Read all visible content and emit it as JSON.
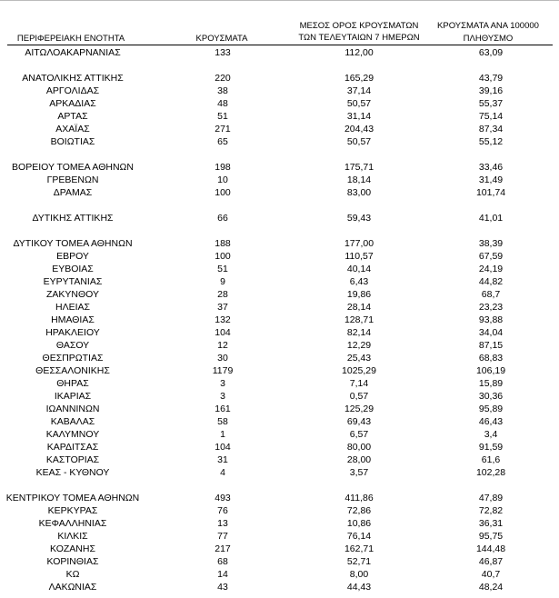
{
  "table": {
    "header": {
      "region": "ΠΕΡΙΦΕΡΕΙΑΚΗ ΕΝΟΤΗΤΑ",
      "cases": "ΚΡΟΥΣΜΑΤΑ",
      "avg7": [
        "ΜΕΣΟΣ ΟΡΟΣ ΚΡΟΥΣΜΑΤΩΝ",
        "ΤΩΝ ΤΕΛΕΥΤΑΙΩΝ 7 ΗΜΕΡΩΝ"
      ],
      "per100k": [
        "ΚΡΟΥΣΜΑΤΑ ΑΝΑ 100000",
        "ΠΛΗΘΥΣΜΟ"
      ]
    },
    "groups": [
      [
        [
          "ΑΙΤΩΛΟΑΚΑΡΝΑΝΙΑΣ",
          "133",
          "112,00",
          "63,09"
        ]
      ],
      [
        [
          "ΑΝΑΤΟΛΙΚΗΣ ΑΤΤΙΚΗΣ",
          "220",
          "165,29",
          "43,79"
        ],
        [
          "ΑΡΓΟΛΙΔΑΣ",
          "38",
          "37,14",
          "39,16"
        ],
        [
          "ΑΡΚΑΔΙΑΣ",
          "48",
          "50,57",
          "55,37"
        ],
        [
          "ΑΡΤΑΣ",
          "51",
          "31,14",
          "75,14"
        ],
        [
          "ΑΧΑΪΑΣ",
          "271",
          "204,43",
          "87,34"
        ],
        [
          "ΒΟΙΩΤΙΑΣ",
          "65",
          "50,57",
          "55,12"
        ]
      ],
      [
        [
          "ΒΟΡΕΙΟΥ ΤΟΜΕΑ ΑΘΗΝΩΝ",
          "198",
          "175,71",
          "33,46"
        ],
        [
          "ΓΡΕΒΕΝΩΝ",
          "10",
          "18,14",
          "31,49"
        ],
        [
          "ΔΡΑΜΑΣ",
          "100",
          "83,00",
          "101,74"
        ]
      ],
      [
        [
          "ΔΥΤΙΚΗΣ ΑΤΤΙΚΗΣ",
          "66",
          "59,43",
          "41,01"
        ]
      ],
      [
        [
          "ΔΥΤΙΚΟΥ ΤΟΜΕΑ ΑΘΗΝΩΝ",
          "188",
          "177,00",
          "38,39"
        ],
        [
          "ΕΒΡΟΥ",
          "100",
          "110,57",
          "67,59"
        ],
        [
          "ΕΥΒΟΙΑΣ",
          "51",
          "40,14",
          "24,19"
        ],
        [
          "ΕΥΡΥΤΑΝΙΑΣ",
          "9",
          "6,43",
          "44,82"
        ],
        [
          "ΖΑΚΥΝΘΟΥ",
          "28",
          "19,86",
          "68,7"
        ],
        [
          "ΗΛΕΙΑΣ",
          "37",
          "28,14",
          "23,23"
        ],
        [
          "ΗΜΑΘΙΑΣ",
          "132",
          "128,71",
          "93,88"
        ],
        [
          "ΗΡΑΚΛΕΙΟΥ",
          "104",
          "82,14",
          "34,04"
        ],
        [
          "ΘΑΣΟΥ",
          "12",
          "12,29",
          "87,15"
        ],
        [
          "ΘΕΣΠΡΩΤΙΑΣ",
          "30",
          "25,43",
          "68,83"
        ],
        [
          "ΘΕΣΣΑΛΟΝΙΚΗΣ",
          "1179",
          "1025,29",
          "106,19"
        ],
        [
          "ΘΗΡΑΣ",
          "3",
          "7,14",
          "15,89"
        ],
        [
          "ΙΚΑΡΙΑΣ",
          "3",
          "0,57",
          "30,36"
        ],
        [
          "ΙΩΑΝΝΙΝΩΝ",
          "161",
          "125,29",
          "95,89"
        ],
        [
          "ΚΑΒΑΛΑΣ",
          "58",
          "69,43",
          "46,43"
        ],
        [
          "ΚΑΛΥΜΝΟΥ",
          "1",
          "6,57",
          "3,4"
        ],
        [
          "ΚΑΡΔΙΤΣΑΣ",
          "104",
          "80,00",
          "91,59"
        ],
        [
          "ΚΑΣΤΟΡΙΑΣ",
          "31",
          "28,00",
          "61,6"
        ],
        [
          "ΚΕΑΣ - ΚΥΘΝΟΥ",
          "4",
          "3,57",
          "102,28"
        ]
      ],
      [
        [
          "ΚΕΝΤΡΙΚΟΥ ΤΟΜΕΑ ΑΘΗΝΩΝ",
          "493",
          "411,86",
          "47,89"
        ],
        [
          "ΚΕΡΚΥΡΑΣ",
          "76",
          "72,86",
          "72,82"
        ],
        [
          "ΚΕΦΑΛΛΗΝΙΑΣ",
          "13",
          "10,86",
          "36,31"
        ],
        [
          "ΚΙΛΚΙΣ",
          "77",
          "76,14",
          "95,75"
        ],
        [
          "ΚΟΖΑΝΗΣ",
          "217",
          "162,71",
          "144,48"
        ],
        [
          "ΚΟΡΙΝΘΙΑΣ",
          "68",
          "52,71",
          "46,87"
        ],
        [
          "ΚΩ",
          "14",
          "8,00",
          "40,7"
        ],
        [
          "ΛΑΚΩΝΙΑΣ",
          "43",
          "44,43",
          "48,24"
        ]
      ]
    ]
  }
}
